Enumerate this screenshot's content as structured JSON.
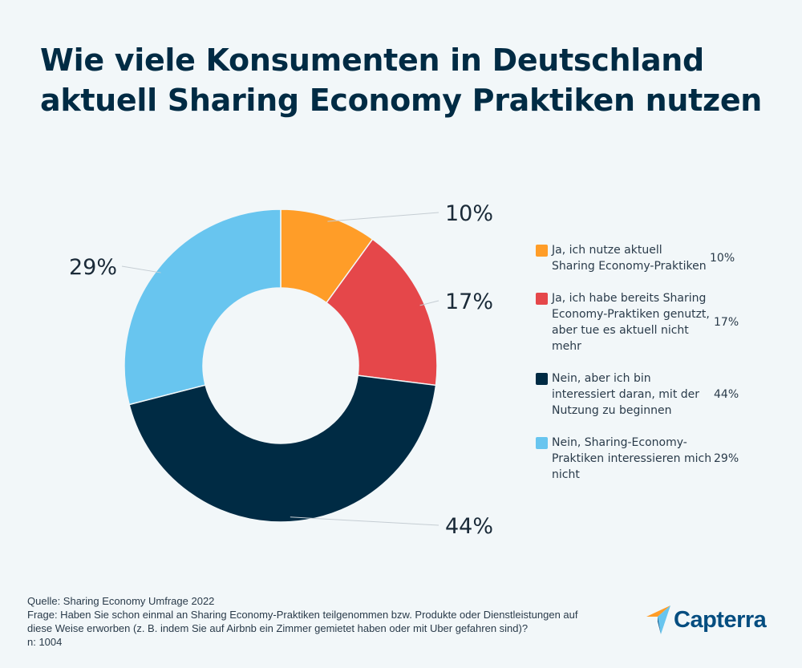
{
  "title": "Wie viele Konsumenten in Deutschland aktuell Sharing Economy Praktiken nutzen",
  "chart_data": {
    "type": "pie",
    "variant": "donut",
    "categories": [
      "Ja, ich nutze aktuell Sharing Economy-Praktiken",
      "Ja, ich habe bereits Sharing Economy-Praktiken genutzt, aber tue es aktuell nicht mehr",
      "Nein, aber ich bin interessiert daran, mit der Nutzung zu beginnen",
      "Nein, Sharing-Economy-Praktiken interessieren mich nicht"
    ],
    "values": [
      10,
      17,
      44,
      29
    ],
    "labels": [
      "10%",
      "17%",
      "44%",
      "29%"
    ],
    "colors": [
      "#FF9D28",
      "#E5474A",
      "#002B44",
      "#68C5EF"
    ],
    "legend_placement": "right"
  },
  "legend": [
    {
      "label": "Ja, ich nutze aktuell Sharing Economy-Praktiken",
      "value": "10%"
    },
    {
      "label": "Ja, ich habe bereits Sharing Economy-Praktiken genutzt, aber tue es aktuell nicht mehr",
      "value": "17%"
    },
    {
      "label": "Nein, aber ich bin interessiert daran, mit der Nutzung zu beginnen",
      "value": "44%"
    },
    {
      "label": "Nein, Sharing-Economy-Praktiken interessieren mich nicht",
      "value": "29%"
    }
  ],
  "footer": {
    "source": "Quelle: Sharing Economy Umfrage 2022",
    "question": "Frage: Haben Sie schon einmal an Sharing Economy-Praktiken teilgenommen bzw. Produkte oder Dienstleistungen auf diese Weise erworben (z. B. indem Sie auf Airbnb ein Zimmer gemietet haben oder mit Uber gefahren sind)?",
    "n": "n: 1004"
  },
  "logo": {
    "text": "Capterra",
    "icon": "capterra-arrow-icon"
  }
}
